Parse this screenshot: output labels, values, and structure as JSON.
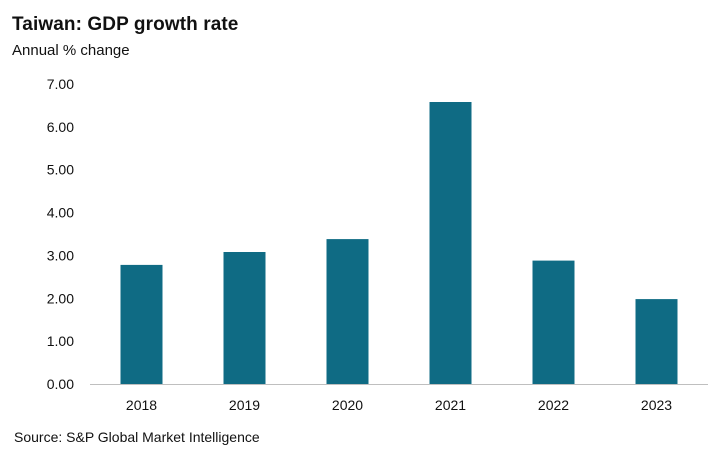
{
  "title": "Taiwan: GDP growth rate",
  "subtitle": "Annual % change",
  "source": "Source: S&P Global Market Intelligence",
  "colors": {
    "bar": "#0f6b84",
    "axis": "#bfbfbf"
  },
  "chart_data": {
    "type": "bar",
    "categories": [
      "2018",
      "2019",
      "2020",
      "2021",
      "2022",
      "2023"
    ],
    "values": [
      2.78,
      3.08,
      3.38,
      6.58,
      2.88,
      1.98
    ],
    "ylim": [
      0,
      7
    ],
    "yticks": [
      "0.00",
      "1.00",
      "2.00",
      "3.00",
      "4.00",
      "5.00",
      "6.00",
      "7.00"
    ],
    "grid": false,
    "legend": "none"
  }
}
